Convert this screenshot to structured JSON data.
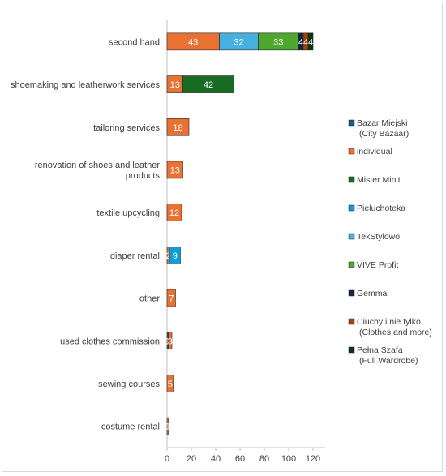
{
  "chart_data": {
    "type": "bar",
    "orientation": "horizontal",
    "stacked": true,
    "categories": [
      "second hand",
      "shoemaking and leatherwork services",
      "tailoring services",
      "renovation of shoes and leather products",
      "textile upcycling",
      "diaper rental",
      "other",
      "used clothes commission",
      "sewing courses",
      "costume rental"
    ],
    "series": [
      {
        "name": "Bazar Miejski (City Bazaar)",
        "color": "#156082",
        "values": [
          0,
          0,
          0,
          0,
          0,
          0,
          0,
          1,
          0,
          0
        ]
      },
      {
        "name": "individual",
        "color": "#E97132",
        "values": [
          43,
          13,
          18,
          13,
          12,
          2,
          7,
          3,
          5,
          1
        ]
      },
      {
        "name": "Mister Minit",
        "color": "#196B24",
        "values": [
          0,
          42,
          0,
          0,
          0,
          0,
          0,
          0,
          0,
          0
        ]
      },
      {
        "name": "Pieluchoteka",
        "color": "#0F9ED5",
        "values": [
          0,
          0,
          0,
          0,
          0,
          9,
          0,
          0,
          0,
          0
        ]
      },
      {
        "name": "TekStylowo",
        "color": "#46B1E1",
        "values": [
          32,
          0,
          0,
          0,
          0,
          0,
          0,
          0,
          0,
          0
        ]
      },
      {
        "name": "VIVE Profit",
        "color": "#4EA72E",
        "values": [
          33,
          0,
          0,
          0,
          0,
          0,
          0,
          0,
          0,
          0
        ]
      },
      {
        "name": "Gemma",
        "color": "#0E2841",
        "values": [
          4,
          0,
          0,
          0,
          0,
          0,
          0,
          0,
          0,
          0
        ]
      },
      {
        "name": "Ciuchy i nie tylko (Clothes and more)",
        "color": "#A0430A",
        "values": [
          4,
          0,
          0,
          0,
          0,
          0,
          0,
          0,
          0,
          0
        ]
      },
      {
        "name": "Pełna Szafa (Full Wardrobe)",
        "color": "#0B3413",
        "values": [
          4,
          0,
          0,
          0,
          0,
          0,
          0,
          0,
          0,
          0
        ]
      }
    ],
    "bar_labels": [
      [
        "43",
        "32",
        "33",
        "4",
        "4",
        "4"
      ],
      [
        "13",
        "42"
      ],
      [
        "18"
      ],
      [
        "13"
      ],
      [
        "12"
      ],
      [
        "2",
        "9"
      ],
      [
        "7"
      ],
      [
        "1",
        "3"
      ],
      [
        "5"
      ],
      [
        "1"
      ]
    ],
    "category_labels": [
      [
        "second hand"
      ],
      [
        "shoemaking and leatherwork services"
      ],
      [
        "tailoring services"
      ],
      [
        "renovation of shoes and leather",
        "products"
      ],
      [
        "textile upcycling"
      ],
      [
        "diaper rental"
      ],
      [
        "other"
      ],
      [
        "used clothes commission"
      ],
      [
        "sewing courses"
      ],
      [
        "costume rental"
      ]
    ],
    "legend": [
      [
        "Bazar Miejski",
        "(City Bazaar)"
      ],
      [
        "individual"
      ],
      [
        "Mister Minit"
      ],
      [
        "Pieluchoteka"
      ],
      [
        "TekStylowo"
      ],
      [
        "VIVE Profit"
      ],
      [
        "Gemma"
      ],
      [
        "Ciuchy i nie tylko",
        "(Clothes and more)"
      ],
      [
        "Pełna Szafa",
        "(Full Wardrobe)"
      ]
    ],
    "xlim": [
      0,
      130
    ],
    "xticks": [
      0,
      20,
      40,
      60,
      80,
      100,
      120
    ],
    "title": "",
    "xlabel": "",
    "ylabel": "",
    "legend_position": "right",
    "grid": false
  }
}
